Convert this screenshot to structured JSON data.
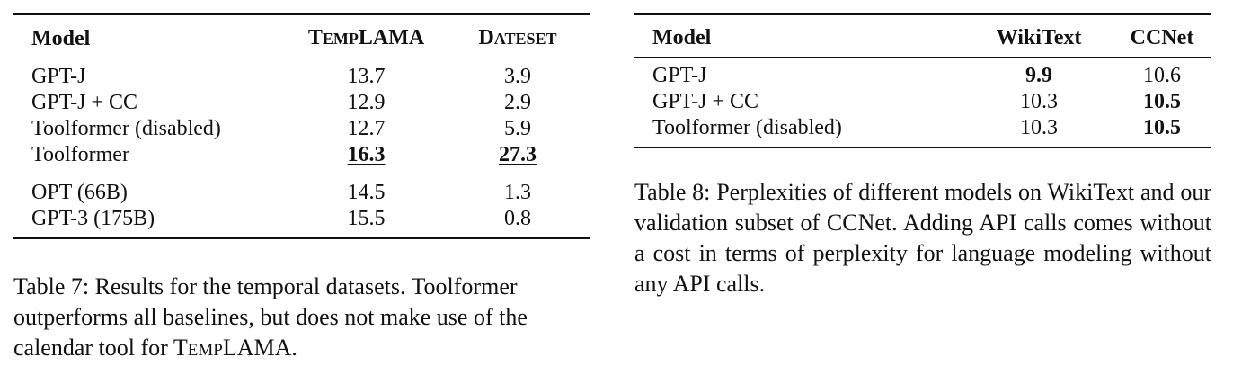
{
  "table7": {
    "headers": {
      "model": "Model",
      "templama_first": "T",
      "templama_rest": "EMP",
      "templama_tail": "LAMA",
      "dateset_first": "D",
      "dateset_rest": "ATESET"
    },
    "rows_group1": [
      {
        "model": "GPT-J",
        "templama": "13.7",
        "dateset": "3.9"
      },
      {
        "model": "GPT-J + CC",
        "templama": "12.9",
        "dateset": "2.9"
      },
      {
        "model": "Toolformer (disabled)",
        "templama": "12.7",
        "dateset": "5.9"
      },
      {
        "model": "Toolformer",
        "templama": "16.3",
        "dateset": "27.3"
      }
    ],
    "rows_group2": [
      {
        "model": "OPT (66B)",
        "templama": "14.5",
        "dateset": "1.3"
      },
      {
        "model": "GPT-3 (175B)",
        "templama": "15.5",
        "dateset": "0.8"
      }
    ],
    "caption_main": "Table 7: Results for the temporal datasets. Toolformer outperforms all baselines, but does not make use of the calendar tool for ",
    "caption_t": "T",
    "caption_emp": "EMP",
    "caption_lama": "LAMA",
    "caption_end": "."
  },
  "table8": {
    "headers": {
      "model": "Model",
      "wikitext": "WikiText",
      "ccnet": "CCNet"
    },
    "rows": [
      {
        "model": "GPT-J",
        "wikitext": "9.9",
        "ccnet": "10.6"
      },
      {
        "model": "GPT-J + CC",
        "wikitext": "10.3",
        "ccnet": "10.5"
      },
      {
        "model": "Toolformer (disabled)",
        "wikitext": "10.3",
        "ccnet": "10.5"
      }
    ],
    "caption": "Table 8: Perplexities of different models on WikiText and our validation subset of CCNet. Adding API calls comes without a cost in terms of perplexity for language modeling without any API calls."
  }
}
